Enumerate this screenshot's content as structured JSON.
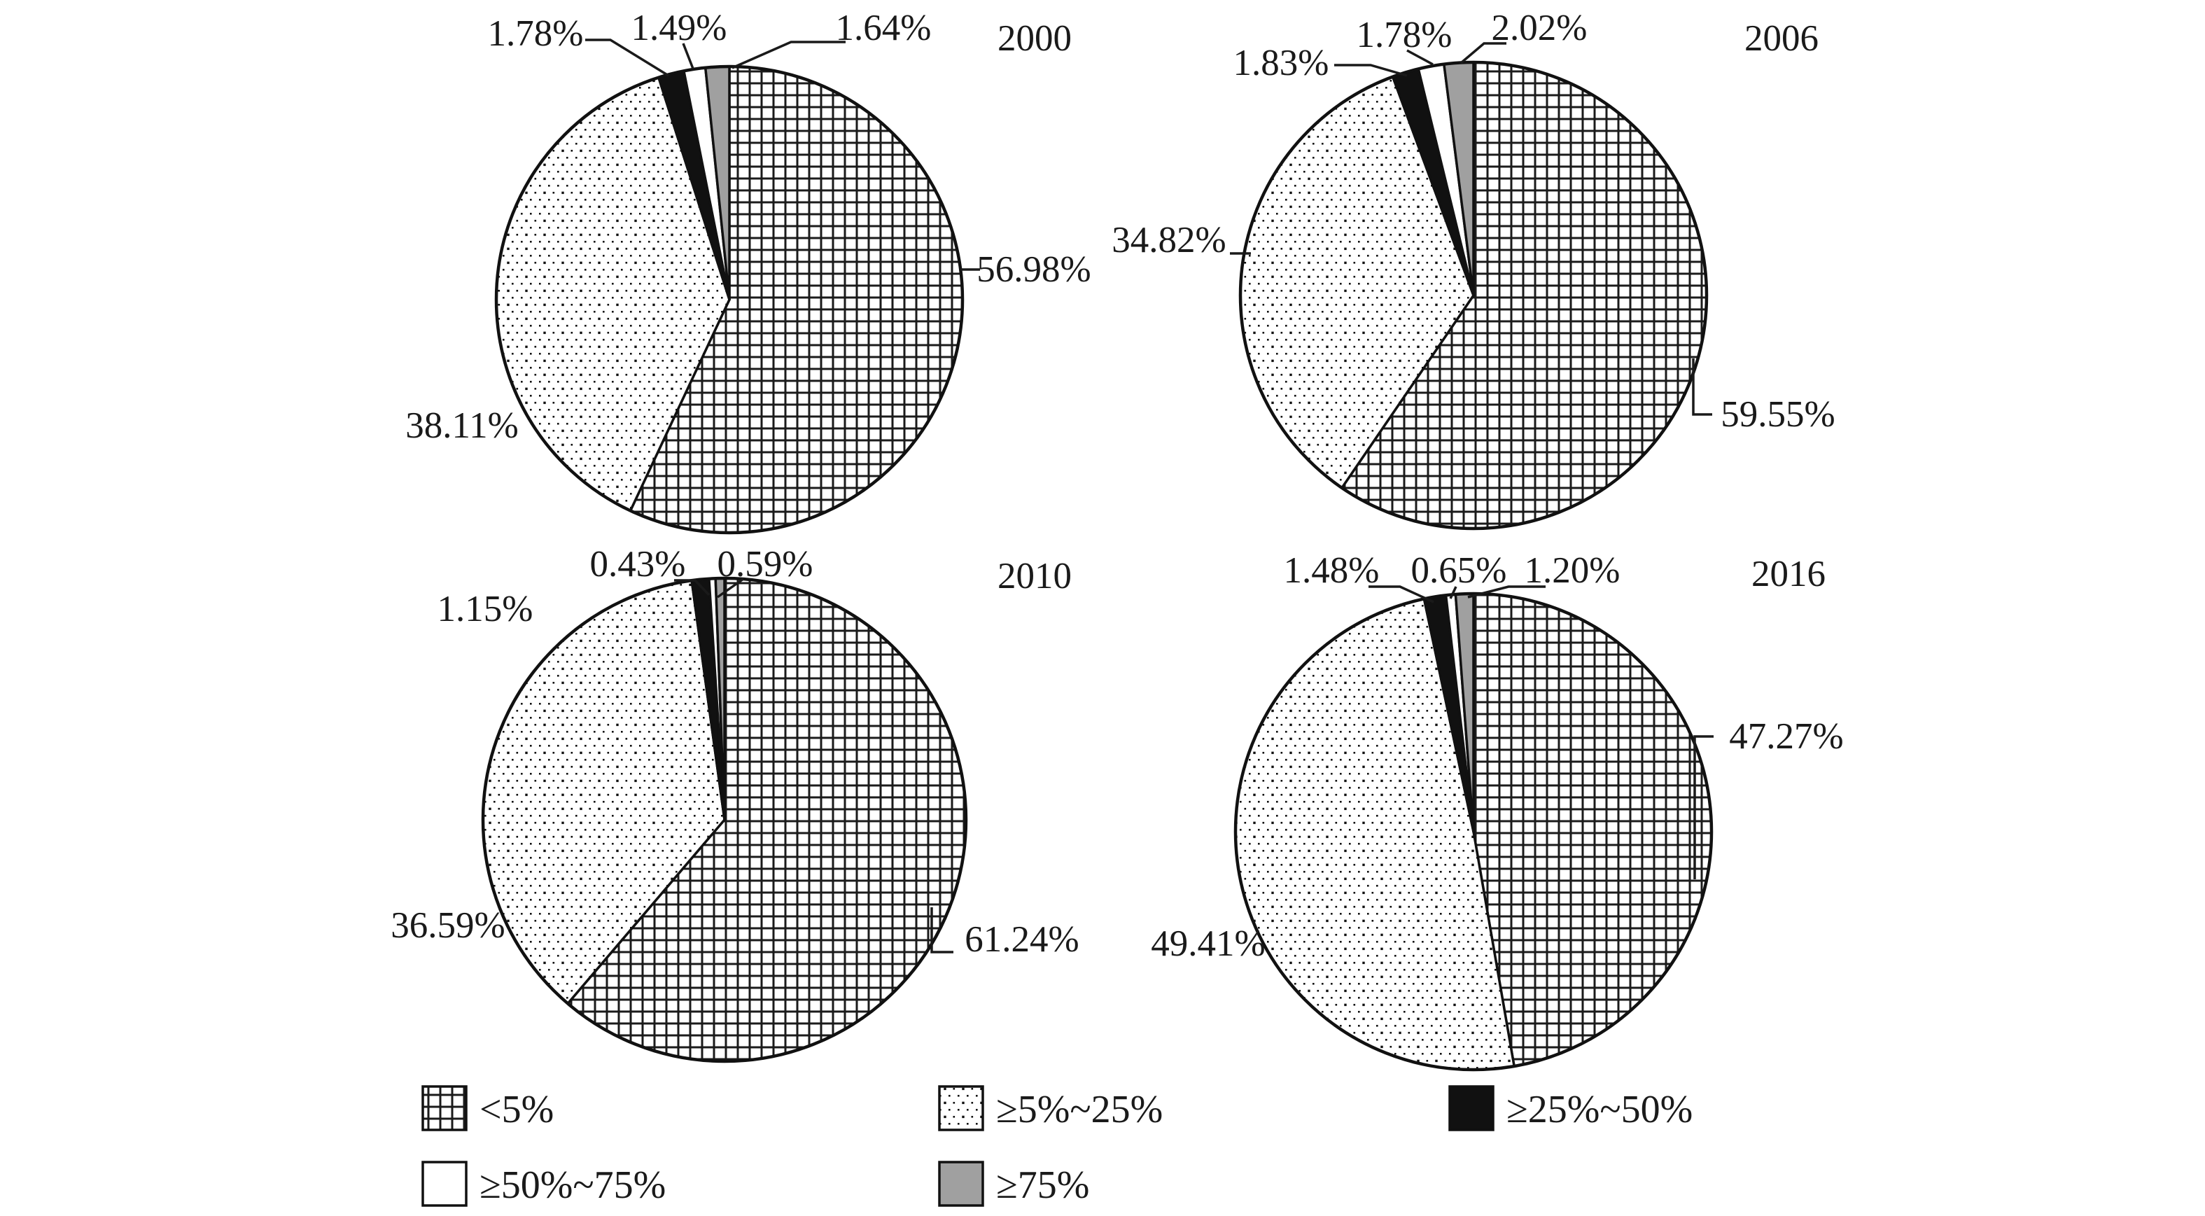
{
  "figure": {
    "background": "#ffffff"
  },
  "colors": {
    "ink": "#1a1a1a",
    "gray_fill": "#a0a0a0",
    "black_fill": "#111111",
    "white_fill": "#ffffff"
  },
  "legend": {
    "items": [
      {
        "label": "<5%",
        "pattern": "crosshatch"
      },
      {
        "label": "≥5%~25%",
        "pattern": "dots"
      },
      {
        "label": "≥25%~50%",
        "pattern": "black"
      },
      {
        "label": "≥50%~75%",
        "pattern": "white"
      },
      {
        "label": "≥75%",
        "pattern": "gray"
      }
    ]
  },
  "chart_data": {
    "type": "pie",
    "unit": "%",
    "start_angle_deg": 0,
    "direction": "clockwise",
    "categories": [
      "<5%",
      "≥5%~25%",
      "≥25%~50%",
      "≥50%~75%",
      "≥75%"
    ],
    "patterns": [
      "crosshatch",
      "dots",
      "black",
      "white",
      "gray"
    ],
    "pies": [
      {
        "year": "2000",
        "values": [
          56.98,
          38.11,
          1.78,
          1.49,
          1.64
        ],
        "labels": [
          "56.98%",
          "38.11%",
          "1.78%",
          "1.49%",
          "1.64%"
        ]
      },
      {
        "year": "2006",
        "values": [
          59.55,
          34.82,
          1.83,
          1.78,
          2.02
        ],
        "labels": [
          "59.55%",
          "34.82%",
          "1.83%",
          "1.78%",
          "2.02%"
        ]
      },
      {
        "year": "2010",
        "values": [
          61.24,
          36.59,
          1.15,
          0.43,
          0.59
        ],
        "labels": [
          "61.24%",
          "36.59%",
          "1.15%",
          "0.43%",
          "0.59%"
        ]
      },
      {
        "year": "2016",
        "values": [
          47.27,
          49.41,
          1.48,
          0.65,
          1.2
        ],
        "labels": [
          "47.27%",
          "49.41%",
          "1.48%",
          "0.65%",
          "1.20%"
        ]
      }
    ]
  }
}
